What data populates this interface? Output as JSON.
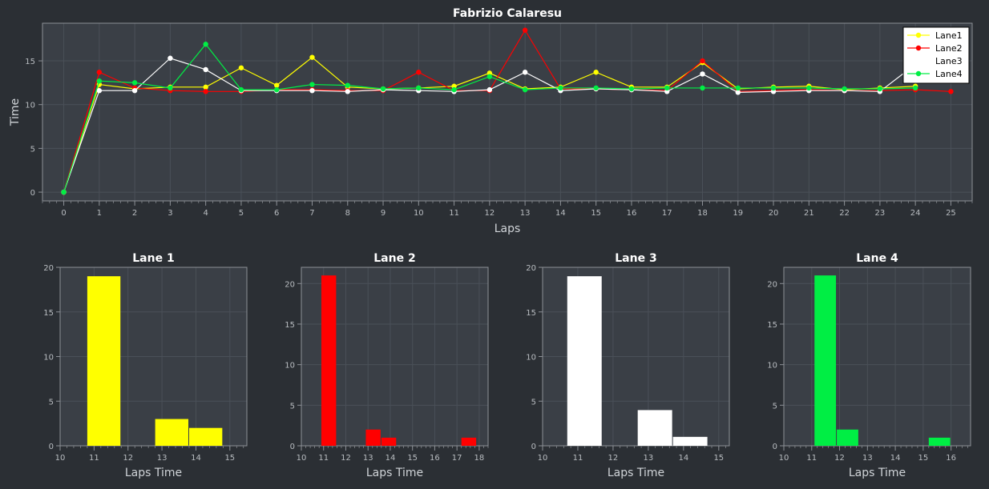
{
  "colors": {
    "background": "#2b2f34",
    "plot_bg": "#3a3f46",
    "grid": "#4a5058",
    "axis": "#8c9096",
    "lane1": "#ffff00",
    "lane2": "#ff0000",
    "lane3": "#ffffff",
    "lane4": "#00ee44"
  },
  "chart_data": [
    {
      "id": "main",
      "type": "line",
      "title": "Fabrizio Calaresu",
      "xlabel": "Laps",
      "ylabel": "Time",
      "xlim": [
        -0.6,
        25.6
      ],
      "ylim": [
        -1,
        19.3
      ],
      "xticks": [
        0,
        1,
        2,
        3,
        4,
        5,
        6,
        7,
        8,
        9,
        10,
        11,
        12,
        13,
        14,
        15,
        16,
        17,
        18,
        19,
        20,
        21,
        22,
        23,
        24,
        25
      ],
      "yticks": [
        0,
        5,
        10,
        15
      ],
      "legend_position": "top-right",
      "series": [
        {
          "name": "Lane1",
          "color": "#ffff00",
          "x": [
            0,
            1,
            2,
            3,
            4,
            5,
            6,
            7,
            8,
            9,
            10,
            11,
            12,
            13,
            14,
            15,
            16,
            17,
            18,
            19,
            20,
            21,
            22,
            23,
            24
          ],
          "values": [
            0,
            12.3,
            11.8,
            12.0,
            12.0,
            14.2,
            12.2,
            15.4,
            12.0,
            11.8,
            11.9,
            12.1,
            13.6,
            11.8,
            12.0,
            13.7,
            12.0,
            12.0,
            14.8,
            11.8,
            12.0,
            12.1,
            11.7,
            11.9,
            12.1
          ]
        },
        {
          "name": "Lane2",
          "color": "#ff0000",
          "x": [
            0,
            1,
            2,
            3,
            4,
            5,
            6,
            7,
            8,
            9,
            10,
            11,
            12,
            13,
            14,
            15,
            16,
            17,
            18,
            19,
            20,
            21,
            22,
            23,
            24,
            25
          ],
          "values": [
            0,
            13.7,
            11.9,
            11.6,
            11.5,
            11.5,
            11.7,
            11.7,
            11.6,
            11.6,
            13.7,
            11.6,
            11.6,
            18.5,
            11.8,
            11.8,
            11.7,
            11.6,
            15.0,
            11.5,
            11.6,
            11.7,
            11.6,
            11.6,
            11.7,
            11.5
          ]
        },
        {
          "name": "Lane3",
          "color": "#ffffff",
          "x": [
            0,
            1,
            2,
            3,
            4,
            5,
            6,
            7,
            8,
            9,
            10,
            11,
            12,
            13,
            14,
            15,
            16,
            17,
            18,
            19,
            20,
            21,
            22,
            23,
            24
          ],
          "values": [
            0,
            11.6,
            11.6,
            15.3,
            14.0,
            11.6,
            11.6,
            11.6,
            11.5,
            11.7,
            11.6,
            11.5,
            11.7,
            13.7,
            11.6,
            11.8,
            11.7,
            11.5,
            13.5,
            11.4,
            11.5,
            11.6,
            11.6,
            11.5,
            14.6
          ]
        },
        {
          "name": "Lane4",
          "color": "#00ee44",
          "x": [
            0,
            1,
            2,
            3,
            4,
            5,
            6,
            7,
            8,
            9,
            10,
            11,
            12,
            13,
            14,
            15,
            16,
            17,
            18,
            19,
            20,
            21,
            22,
            23,
            24
          ],
          "values": [
            0,
            12.7,
            12.5,
            11.9,
            16.9,
            11.7,
            11.7,
            12.3,
            12.2,
            11.8,
            11.9,
            11.7,
            13.2,
            11.7,
            11.9,
            11.9,
            11.8,
            11.9,
            11.9,
            11.9,
            11.9,
            11.9,
            11.8,
            11.8,
            11.9
          ]
        }
      ]
    },
    {
      "id": "lane1",
      "type": "bar",
      "title": "Lane 1",
      "xlabel": "Laps Time",
      "ylabel": "",
      "xlim": [
        10,
        15.5
      ],
      "ylim": [
        0,
        20
      ],
      "xticks": [
        10,
        11,
        12,
        13,
        14,
        15
      ],
      "yticks": [
        0,
        5,
        10,
        15,
        20
      ],
      "color": "#ffff00",
      "bins": [
        [
          10.8,
          11.8,
          19
        ],
        [
          12.8,
          13.8,
          3
        ],
        [
          13.8,
          14.8,
          2
        ]
      ]
    },
    {
      "id": "lane2",
      "type": "bar",
      "title": "Lane 2",
      "xlabel": "Laps Time",
      "ylabel": "",
      "xlim": [
        10,
        18.4
      ],
      "ylim": [
        0,
        22
      ],
      "xticks": [
        10,
        11,
        12,
        13,
        14,
        15,
        16,
        17,
        18
      ],
      "yticks": [
        0,
        5,
        10,
        15,
        20
      ],
      "color": "#ff0000",
      "bins": [
        [
          10.9,
          11.6,
          21
        ],
        [
          12.9,
          13.6,
          2
        ],
        [
          13.6,
          14.3,
          1
        ],
        [
          17.2,
          17.9,
          1
        ]
      ]
    },
    {
      "id": "lane3",
      "type": "bar",
      "title": "Lane 3",
      "xlabel": "Laps Time",
      "ylabel": "",
      "xlim": [
        10,
        15.3
      ],
      "ylim": [
        0,
        20
      ],
      "xticks": [
        10,
        11,
        12,
        13,
        14,
        15
      ],
      "yticks": [
        0,
        5,
        10,
        15,
        20
      ],
      "color": "#ffffff",
      "bins": [
        [
          10.7,
          11.7,
          19
        ],
        [
          12.7,
          13.7,
          4
        ],
        [
          13.7,
          14.7,
          1
        ]
      ]
    },
    {
      "id": "lane4",
      "type": "bar",
      "title": "Lane 4",
      "xlabel": "Laps Time",
      "ylabel": "",
      "xlim": [
        10,
        16.7
      ],
      "ylim": [
        0,
        22
      ],
      "xticks": [
        10,
        11,
        12,
        13,
        14,
        15,
        16
      ],
      "yticks": [
        0,
        5,
        10,
        15,
        20
      ],
      "color": "#00ee44",
      "bins": [
        [
          11.1,
          11.9,
          21
        ],
        [
          11.9,
          12.7,
          2
        ],
        [
          15.2,
          16.0,
          1
        ]
      ]
    }
  ]
}
